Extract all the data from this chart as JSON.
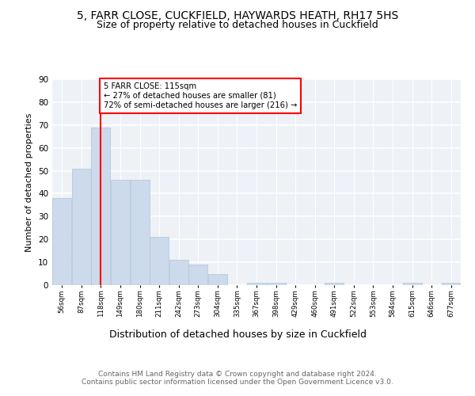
{
  "title1": "5, FARR CLOSE, CUCKFIELD, HAYWARDS HEATH, RH17 5HS",
  "title2": "Size of property relative to detached houses in Cuckfield",
  "xlabel": "Distribution of detached houses by size in Cuckfield",
  "ylabel": "Number of detached properties",
  "bar_labels": [
    "56sqm",
    "87sqm",
    "118sqm",
    "149sqm",
    "180sqm",
    "211sqm",
    "242sqm",
    "273sqm",
    "304sqm",
    "335sqm",
    "367sqm",
    "398sqm",
    "429sqm",
    "460sqm",
    "491sqm",
    "522sqm",
    "553sqm",
    "584sqm",
    "615sqm",
    "646sqm",
    "677sqm"
  ],
  "bar_values": [
    38,
    51,
    69,
    46,
    46,
    21,
    11,
    9,
    5,
    0,
    1,
    1,
    0,
    0,
    1,
    0,
    0,
    0,
    1,
    0,
    1
  ],
  "bar_color": "#ccdaeb",
  "bar_edge_color": "#aec4d8",
  "annotation_box_text": "5 FARR CLOSE: 115sqm\n← 27% of detached houses are smaller (81)\n72% of semi-detached houses are larger (216) →",
  "annotation_box_color": "white",
  "annotation_box_edge_color": "red",
  "vline_color": "red",
  "vline_x_index": 2,
  "ylim": [
    0,
    90
  ],
  "yticks": [
    0,
    10,
    20,
    30,
    40,
    50,
    60,
    70,
    80,
    90
  ],
  "background_color": "#eef2f7",
  "grid_color": "white",
  "footer_text": "Contains HM Land Registry data © Crown copyright and database right 2024.\nContains public sector information licensed under the Open Government Licence v3.0.",
  "title1_fontsize": 10,
  "title2_fontsize": 9,
  "xlabel_fontsize": 9,
  "ylabel_fontsize": 8,
  "footer_fontsize": 6.5
}
